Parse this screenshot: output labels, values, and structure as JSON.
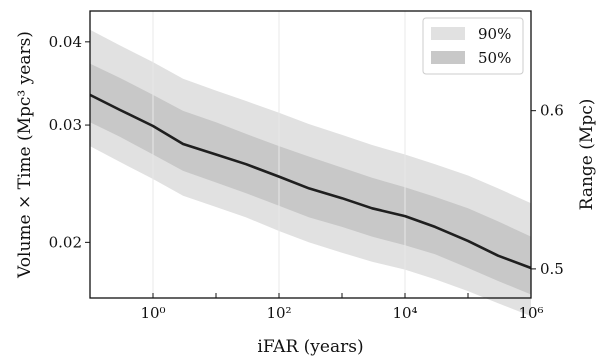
{
  "chart_data": {
    "type": "line",
    "title": "",
    "xlabel": "iFAR (years)",
    "ylabel": "Volume × Time (Mpc³ years)",
    "ylabel_right": "Range (Mpc)",
    "xscale": "log",
    "yscale": "log",
    "xlim": [
      0.1,
      1000000
    ],
    "ylim": [
      0.0165,
      0.0445
    ],
    "x_ticks": [
      {
        "value": 1,
        "label": "10⁰"
      },
      {
        "value": 100,
        "label": "10²"
      },
      {
        "value": 10000,
        "label": "10⁴"
      },
      {
        "value": 1000000,
        "label": "10⁶"
      }
    ],
    "y_ticks": [
      {
        "value": 0.02,
        "label": "0.02"
      },
      {
        "value": 0.03,
        "label": "0.03"
      },
      {
        "value": 0.04,
        "label": "0.04"
      }
    ],
    "y2_ticks": [
      {
        "value": 0.5,
        "label": "0.5"
      },
      {
        "value": 0.6,
        "label": "0.6"
      }
    ],
    "grid": "vertical-major",
    "legend": {
      "placement": "top-right",
      "entries": [
        {
          "label": "90%",
          "color": "#e1e1e1"
        },
        {
          "label": "50%",
          "color": "#c8c8c8"
        }
      ]
    },
    "colors": {
      "median": "#1f1f1f",
      "band90": "#e1e1e1",
      "band50": "#c8c8c8"
    },
    "x": [
      0.1,
      0.3,
      1,
      3,
      10,
      30,
      100,
      300,
      1000,
      3000,
      10000,
      30000,
      100000,
      300000,
      1000000
    ],
    "series": [
      {
        "values": [
          0.0333,
          0.0316,
          0.0299,
          0.0281,
          0.0271,
          0.0262,
          0.0251,
          0.0241,
          0.0233,
          0.0225,
          0.0219,
          0.0211,
          0.0201,
          0.0191,
          0.0183
        ]
      },
      {
        "values": [
          0.0371,
          0.0353,
          0.0333,
          0.0315,
          0.0303,
          0.0291,
          0.0279,
          0.0269,
          0.0259,
          0.025,
          0.0242,
          0.0234,
          0.0225,
          0.0215,
          0.0204
        ]
      },
      {
        "values": [
          0.0303,
          0.0288,
          0.0271,
          0.0256,
          0.0246,
          0.0237,
          0.0227,
          0.0218,
          0.0211,
          0.0204,
          0.0198,
          0.0192,
          0.0183,
          0.0175,
          0.0167
        ]
      },
      {
        "values": [
          0.0417,
          0.0395,
          0.0373,
          0.0352,
          0.0338,
          0.0326,
          0.0313,
          0.0301,
          0.029,
          0.028,
          0.0271,
          0.0262,
          0.0252,
          0.0241,
          0.0229
        ]
      },
      {
        "values": [
          0.0279,
          0.0264,
          0.0249,
          0.0235,
          0.0226,
          0.0218,
          0.0208,
          0.02,
          0.0193,
          0.0187,
          0.0182,
          0.0176,
          0.0169,
          0.0162,
          0.0155
        ]
      }
    ]
  }
}
